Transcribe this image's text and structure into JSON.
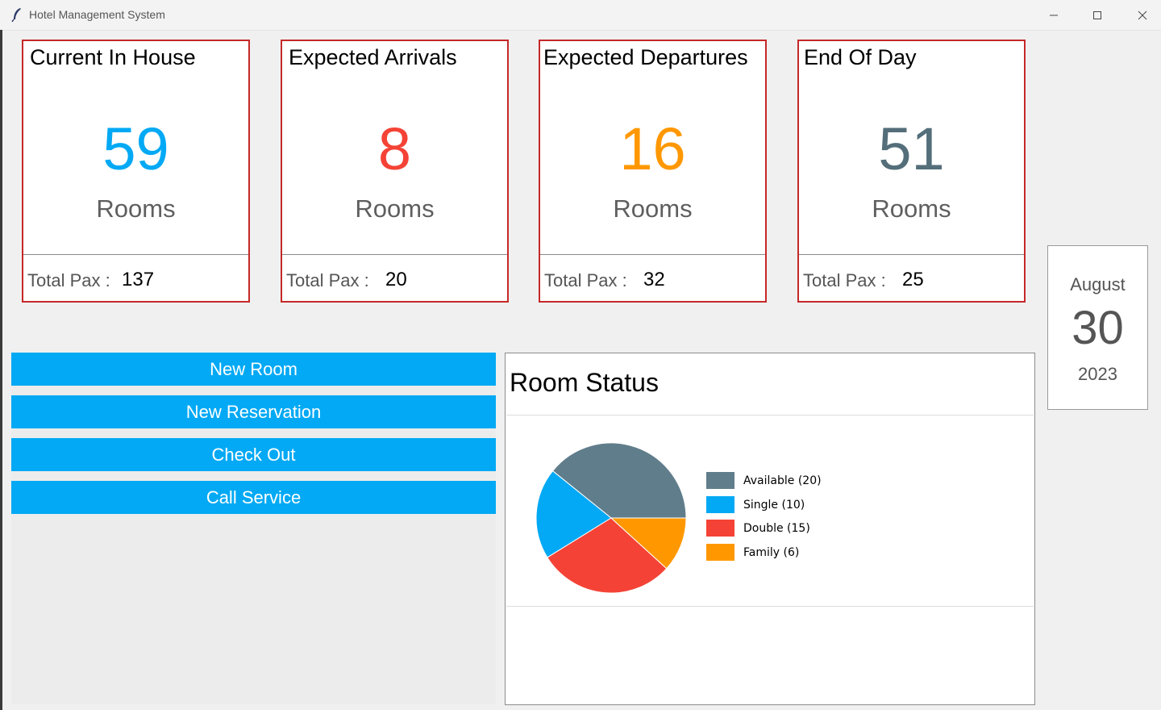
{
  "window": {
    "title": "Hotel Management System"
  },
  "cards": [
    {
      "title": "Current In House",
      "value": "59",
      "unit": "Rooms",
      "pax_label": "Total Pax :",
      "pax_value": "137",
      "color": "#03a9f4"
    },
    {
      "title": "Expected Arrivals",
      "value": "8",
      "unit": "Rooms",
      "pax_label": "Total Pax :",
      "pax_value": "20",
      "color": "#f44336"
    },
    {
      "title": "Expected Departures",
      "value": "16",
      "unit": "Rooms",
      "pax_label": "Total Pax :",
      "pax_value": "32",
      "color": "#ff9800"
    },
    {
      "title": "End Of Day",
      "value": "51",
      "unit": "Rooms",
      "pax_label": "Total Pax :",
      "pax_value": "25",
      "color": "#546e7a"
    }
  ],
  "date": {
    "month": "August",
    "day": "30",
    "year": "2023"
  },
  "actions": {
    "new_room": "New Room",
    "new_reservation": "New Reservation",
    "check_out": "Check Out",
    "call_service": "Call Service"
  },
  "room_status": {
    "title": "Room Status"
  },
  "chart_data": {
    "type": "pie",
    "title": "Room Status",
    "categories": [
      "Available",
      "Single",
      "Double",
      "Family"
    ],
    "values": [
      20,
      10,
      15,
      6
    ],
    "labels": [
      "Available (20)",
      "Single (10)",
      "Double (15)",
      "Family (6)"
    ],
    "colors": [
      "#607d8b",
      "#03a9f4",
      "#f44336",
      "#ff9800"
    ],
    "legend_position": "right"
  },
  "colors": {
    "accent": "#03a9f4",
    "card_border": "#c62828"
  }
}
